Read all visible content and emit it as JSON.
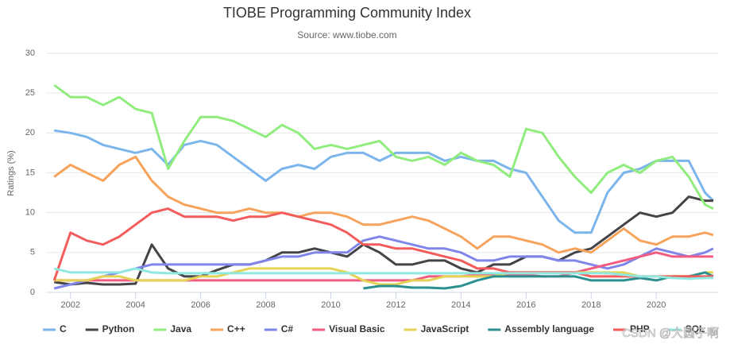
{
  "chart_data": {
    "type": "line",
    "title": "TIOBE Programming Community Index",
    "subtitle": "Source: www.tiobe.com",
    "y_label": "Ratings (%)",
    "watermark": "CSDN @大圆子啊",
    "x": [
      2001.5,
      2002,
      2002.5,
      2003,
      2003.5,
      2004,
      2004.5,
      2005,
      2005.5,
      2006,
      2006.5,
      2007,
      2007.5,
      2008,
      2008.5,
      2009,
      2009.5,
      2010,
      2010.5,
      2011,
      2011.5,
      2012,
      2012.5,
      2013,
      2013.5,
      2014,
      2014.5,
      2015,
      2015.5,
      2016,
      2016.5,
      2017,
      2017.5,
      2018,
      2018.5,
      2019,
      2019.5,
      2020,
      2020.5,
      2021,
      2021.5,
      2021.75
    ],
    "xlim": [
      2001.25,
      2021.9
    ],
    "xticks": [
      2002,
      2004,
      2006,
      2008,
      2010,
      2012,
      2014,
      2016,
      2018,
      2020
    ],
    "ylim": [
      0,
      30
    ],
    "yticks": [
      0,
      5,
      10,
      15,
      20,
      25,
      30
    ],
    "grid": true,
    "series": [
      {
        "name": "C",
        "color": "#7cb5ec",
        "values": [
          20.3,
          20,
          19.5,
          18.5,
          18,
          17.5,
          18,
          16,
          18.5,
          19,
          18.5,
          17,
          15.5,
          14,
          15.5,
          16,
          15.5,
          17,
          17.5,
          17.5,
          16.5,
          17.5,
          17.5,
          17.5,
          16.5,
          17,
          16.5,
          16.5,
          15.5,
          15,
          12,
          9,
          7.5,
          7.5,
          12.5,
          15,
          15.5,
          16.5,
          16.5,
          16.5,
          12.5,
          11.5
        ]
      },
      {
        "name": "Python",
        "color": "#434348",
        "values": [
          1.3,
          1,
          1.2,
          1,
          1,
          1.1,
          6,
          3,
          2,
          2,
          2.8,
          3.5,
          3.5,
          4,
          5,
          5,
          5.5,
          5,
          4.5,
          6,
          5,
          3.5,
          3.5,
          4,
          4,
          3,
          2.5,
          3.5,
          3.5,
          4.5,
          4.5,
          4,
          5,
          5.5,
          7,
          8.5,
          10,
          9.5,
          10,
          12,
          11.5,
          11.5
        ]
      },
      {
        "name": "Java",
        "color": "#90ed7d",
        "values": [
          26,
          24.5,
          24.5,
          23.5,
          24.5,
          23,
          22.5,
          15.5,
          19,
          22,
          22,
          21.5,
          20.5,
          19.5,
          21,
          20,
          18,
          18.5,
          18,
          18.5,
          19,
          17,
          16.5,
          17,
          16,
          17.5,
          16.5,
          16,
          14.5,
          20.5,
          20,
          17,
          14.5,
          12.5,
          15,
          16,
          15,
          16.5,
          17,
          14.5,
          11,
          10.5
        ]
      },
      {
        "name": "C++",
        "color": "#f7a35c",
        "values": [
          14.5,
          16,
          15,
          14,
          16,
          17,
          14,
          12,
          11,
          10.5,
          10,
          10,
          10.5,
          10,
          10,
          9.5,
          10,
          10,
          9.5,
          8.5,
          8.5,
          9,
          9.5,
          9,
          8,
          7,
          5.5,
          7,
          7,
          6.5,
          6,
          5,
          5.5,
          5,
          6.5,
          8,
          6.5,
          6,
          7,
          7,
          7.5,
          7.2
        ]
      },
      {
        "name": "C#",
        "color": "#8085e9",
        "values": [
          0.5,
          1,
          1.5,
          2,
          2.5,
          3,
          3.5,
          3.5,
          3.5,
          3.5,
          3.5,
          3.5,
          3.5,
          4,
          4.5,
          4.5,
          5,
          5,
          5,
          6.5,
          7,
          6.5,
          6,
          5.5,
          5.5,
          5,
          4,
          4,
          4.5,
          4.5,
          4.5,
          4,
          4,
          3.5,
          3,
          3.5,
          4.5,
          5.5,
          5,
          4.5,
          5,
          5.5
        ]
      },
      {
        "name": "Visual Basic",
        "color": "#f15c80",
        "values": [
          1.5,
          1.5,
          1.5,
          1.5,
          1.5,
          1.5,
          1.5,
          1.5,
          1.5,
          1.5,
          1.5,
          1.5,
          1.5,
          1.5,
          1.5,
          1.5,
          1.5,
          1.5,
          1.5,
          1.5,
          1.5,
          1.5,
          1.5,
          2,
          2,
          2,
          2.2,
          2.2,
          2.2,
          2.2,
          2,
          2,
          2.5,
          3,
          3.5,
          4,
          4.5,
          5,
          4.5,
          4.5,
          4.5,
          4.5
        ]
      },
      {
        "name": "JavaScript",
        "color": "#e4d354",
        "values": [
          1.5,
          1.5,
          1.5,
          2,
          2,
          1.5,
          1.5,
          1.5,
          1.5,
          2,
          2,
          2.5,
          3,
          3,
          3,
          3,
          3,
          3,
          2.5,
          1.5,
          1,
          1,
          1.5,
          1.5,
          2,
          2,
          2,
          2,
          2.5,
          2.5,
          2.5,
          2.5,
          2.5,
          2.5,
          2.5,
          2.5,
          2,
          2,
          2,
          2,
          2.5,
          2.5
        ]
      },
      {
        "name": "Assembly language",
        "color": "#2b908f",
        "values": [
          null,
          null,
          null,
          null,
          null,
          null,
          null,
          null,
          null,
          null,
          null,
          null,
          null,
          null,
          null,
          null,
          null,
          null,
          null,
          0.5,
          0.8,
          0.8,
          0.6,
          0.6,
          0.5,
          0.8,
          1.5,
          2,
          2,
          2,
          2,
          2,
          2,
          1.5,
          1.5,
          1.5,
          1.8,
          1.5,
          2,
          2,
          2.5,
          2
        ]
      },
      {
        "name": "PHP",
        "color": "#f45b5b",
        "values": [
          1.5,
          7.5,
          6.5,
          6,
          7,
          8.5,
          10,
          10.5,
          9.5,
          9.5,
          9.5,
          9,
          9.5,
          9.5,
          10,
          9.5,
          9,
          8.5,
          7.5,
          6,
          6,
          5.5,
          5.5,
          5,
          4.5,
          4,
          3,
          3,
          2.5,
          2.5,
          2.5,
          2.5,
          2.5,
          2,
          2,
          2,
          2,
          2,
          2,
          2,
          2,
          2
        ]
      },
      {
        "name": "SQL",
        "color": "#91e8e1",
        "values": [
          3,
          2.5,
          2.5,
          2.5,
          2.5,
          3,
          2.5,
          2.4,
          2.4,
          2.4,
          2.4,
          2.4,
          2.4,
          2.4,
          2.4,
          2.4,
          2.4,
          2.4,
          2.4,
          2.4,
          2.4,
          2.4,
          2.4,
          2.4,
          2.4,
          2.4,
          2.4,
          2.4,
          2.4,
          2.4,
          2.4,
          2.4,
          2.4,
          2.4,
          2.4,
          2.2,
          2,
          2,
          1.8,
          1.7,
          1.8,
          1.8
        ]
      }
    ]
  }
}
